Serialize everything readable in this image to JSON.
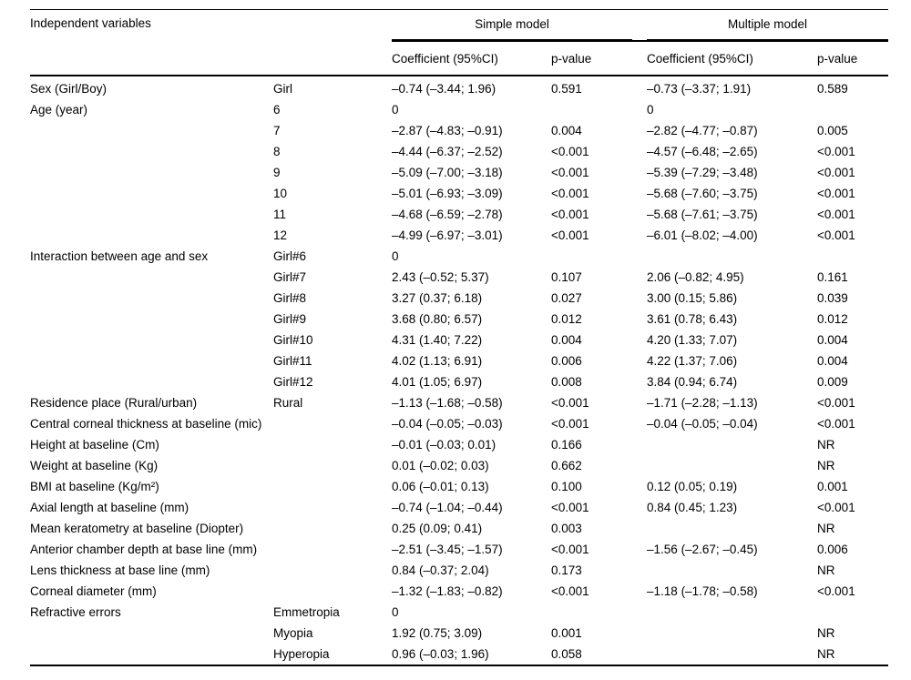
{
  "table": {
    "header": {
      "independent_variables": "Independent variables",
      "simple_model": "Simple model",
      "multiple_model": "Multiple model",
      "coefficient_label": "Coefficient (95%CI)",
      "p_value_label": "p-value"
    },
    "rows": [
      {
        "variable": "Sex (Girl/Boy)",
        "level": "Girl",
        "simple_coef": "–0.74 (–3.44; 1.96)",
        "simple_p": "0.591",
        "multiple_coef": "–0.73 (–3.37; 1.91)",
        "multiple_p": "0.589"
      },
      {
        "variable": "Age (year)",
        "level": "6",
        "simple_coef": "0",
        "simple_p": "",
        "multiple_coef": "0",
        "multiple_p": ""
      },
      {
        "variable": "",
        "level": "7",
        "simple_coef": "–2.87 (–4.83; –0.91)",
        "simple_p": "0.004",
        "multiple_coef": "–2.82 (–4.77; –0.87)",
        "multiple_p": "0.005"
      },
      {
        "variable": "",
        "level": "8",
        "simple_coef": "–4.44 (–6.37; –2.52)",
        "simple_p": "<0.001",
        "multiple_coef": "–4.57 (–6.48; –2.65)",
        "multiple_p": "<0.001"
      },
      {
        "variable": "",
        "level": "9",
        "simple_coef": "–5.09 (–7.00; –3.18)",
        "simple_p": "<0.001",
        "multiple_coef": "–5.39 (–7.29; –3.48)",
        "multiple_p": "<0.001"
      },
      {
        "variable": "",
        "level": "10",
        "simple_coef": "–5.01 (–6.93; –3.09)",
        "simple_p": "<0.001",
        "multiple_coef": "–5.68 (–7.60; –3.75)",
        "multiple_p": "<0.001"
      },
      {
        "variable": "",
        "level": "11",
        "simple_coef": "–4.68 (–6.59; –2.78)",
        "simple_p": "<0.001",
        "multiple_coef": "–5.68 (–7.61; –3.75)",
        "multiple_p": "<0.001"
      },
      {
        "variable": "",
        "level": "12",
        "simple_coef": "–4.99 (–6.97; –3.01)",
        "simple_p": "<0.001",
        "multiple_coef": "–6.01 (–8.02; –4.00)",
        "multiple_p": "<0.001"
      },
      {
        "variable": "Interaction between age and sex",
        "level": "Girl#6",
        "simple_coef": "0",
        "simple_p": "",
        "multiple_coef": "",
        "multiple_p": ""
      },
      {
        "variable": "",
        "level": "Girl#7",
        "simple_coef": "2.43 (–0.52; 5.37)",
        "simple_p": "0.107",
        "multiple_coef": "2.06 (–0.82; 4.95)",
        "multiple_p": "0.161"
      },
      {
        "variable": "",
        "level": "Girl#8",
        "simple_coef": "3.27 (0.37; 6.18)",
        "simple_p": "0.027",
        "multiple_coef": "3.00 (0.15; 5.86)",
        "multiple_p": "0.039"
      },
      {
        "variable": "",
        "level": "Girl#9",
        "simple_coef": "3.68 (0.80; 6.57)",
        "simple_p": "0.012",
        "multiple_coef": "3.61 (0.78; 6.43)",
        "multiple_p": "0.012"
      },
      {
        "variable": "",
        "level": "Girl#10",
        "simple_coef": "4.31 (1.40; 7.22)",
        "simple_p": "0.004",
        "multiple_coef": "4.20 (1.33; 7.07)",
        "multiple_p": "0.004"
      },
      {
        "variable": "",
        "level": "Girl#11",
        "simple_coef": "4.02 (1.13; 6.91)",
        "simple_p": "0.006",
        "multiple_coef": "4.22 (1.37; 7.06)",
        "multiple_p": "0.004"
      },
      {
        "variable": "",
        "level": "Girl#12",
        "simple_coef": "4.01 (1.05; 6.97)",
        "simple_p": "0.008",
        "multiple_coef": "3.84 (0.94; 6.74)",
        "multiple_p": "0.009"
      },
      {
        "variable": "Residence place (Rural/urban)",
        "level": "Rural",
        "simple_coef": "–1.13 (–1.68; –0.58)",
        "simple_p": "<0.001",
        "multiple_coef": "–1.71 (–2.28; –1.13)",
        "multiple_p": "<0.001"
      },
      {
        "variable": "Central corneal thickness at baseline (mic)",
        "level": "",
        "simple_coef": "–0.04 (–0.05; –0.03)",
        "simple_p": "<0.001",
        "multiple_coef": "–0.04 (–0.05; –0.04)",
        "multiple_p": "<0.001"
      },
      {
        "variable": "Height at baseline (Cm)",
        "level": "",
        "simple_coef": "–0.01 (–0.03; 0.01)",
        "simple_p": "0.166",
        "multiple_coef": "",
        "multiple_p": "NR"
      },
      {
        "variable": "Weight at baseline (Kg)",
        "level": "",
        "simple_coef": "0.01 (–0.02; 0.03)",
        "simple_p": "0.662",
        "multiple_coef": "",
        "multiple_p": "NR"
      },
      {
        "variable": "BMI at baseline (Kg/m²)",
        "level": "",
        "simple_coef": "0.06 (–0.01; 0.13)",
        "simple_p": "0.100",
        "multiple_coef": "0.12 (0.05; 0.19)",
        "multiple_p": "0.001"
      },
      {
        "variable": "Axial length at baseline (mm)",
        "level": "",
        "simple_coef": "–0.74 (–1.04; –0.44)",
        "simple_p": "<0.001",
        "multiple_coef": "0.84 (0.45; 1.23)",
        "multiple_p": "<0.001"
      },
      {
        "variable": "Mean keratometry at baseline (Diopter)",
        "level": "",
        "simple_coef": "0.25 (0.09; 0.41)",
        "simple_p": "0.003",
        "multiple_coef": "",
        "multiple_p": "NR"
      },
      {
        "variable": "Anterior chamber depth at base line (mm)",
        "level": "",
        "simple_coef": "–2.51 (–3.45; –1.57)",
        "simple_p": "<0.001",
        "multiple_coef": "–1.56 (–2.67; –0.45)",
        "multiple_p": "0.006"
      },
      {
        "variable": "Lens thickness at base line (mm)",
        "level": "",
        "simple_coef": "0.84 (–0.37; 2.04)",
        "simple_p": "0.173",
        "multiple_coef": "",
        "multiple_p": "NR"
      },
      {
        "variable": "Corneal diameter (mm)",
        "level": "",
        "simple_coef": "–1.32 (–1.83; –0.82)",
        "simple_p": "<0.001",
        "multiple_coef": "–1.18 (–1.78; –0.58)",
        "multiple_p": "<0.001"
      },
      {
        "variable": "Refractive errors",
        "level": "Emmetropia",
        "simple_coef": "0",
        "simple_p": "",
        "multiple_coef": "",
        "multiple_p": ""
      },
      {
        "variable": "",
        "level": "Myopia",
        "simple_coef": "1.92 (0.75; 3.09)",
        "simple_p": "0.001",
        "multiple_coef": "",
        "multiple_p": "NR"
      },
      {
        "variable": "",
        "level": "Hyperopia",
        "simple_coef": "0.96 (–0.03; 1.96)",
        "simple_p": "0.058",
        "multiple_coef": "",
        "multiple_p": "NR"
      }
    ]
  }
}
